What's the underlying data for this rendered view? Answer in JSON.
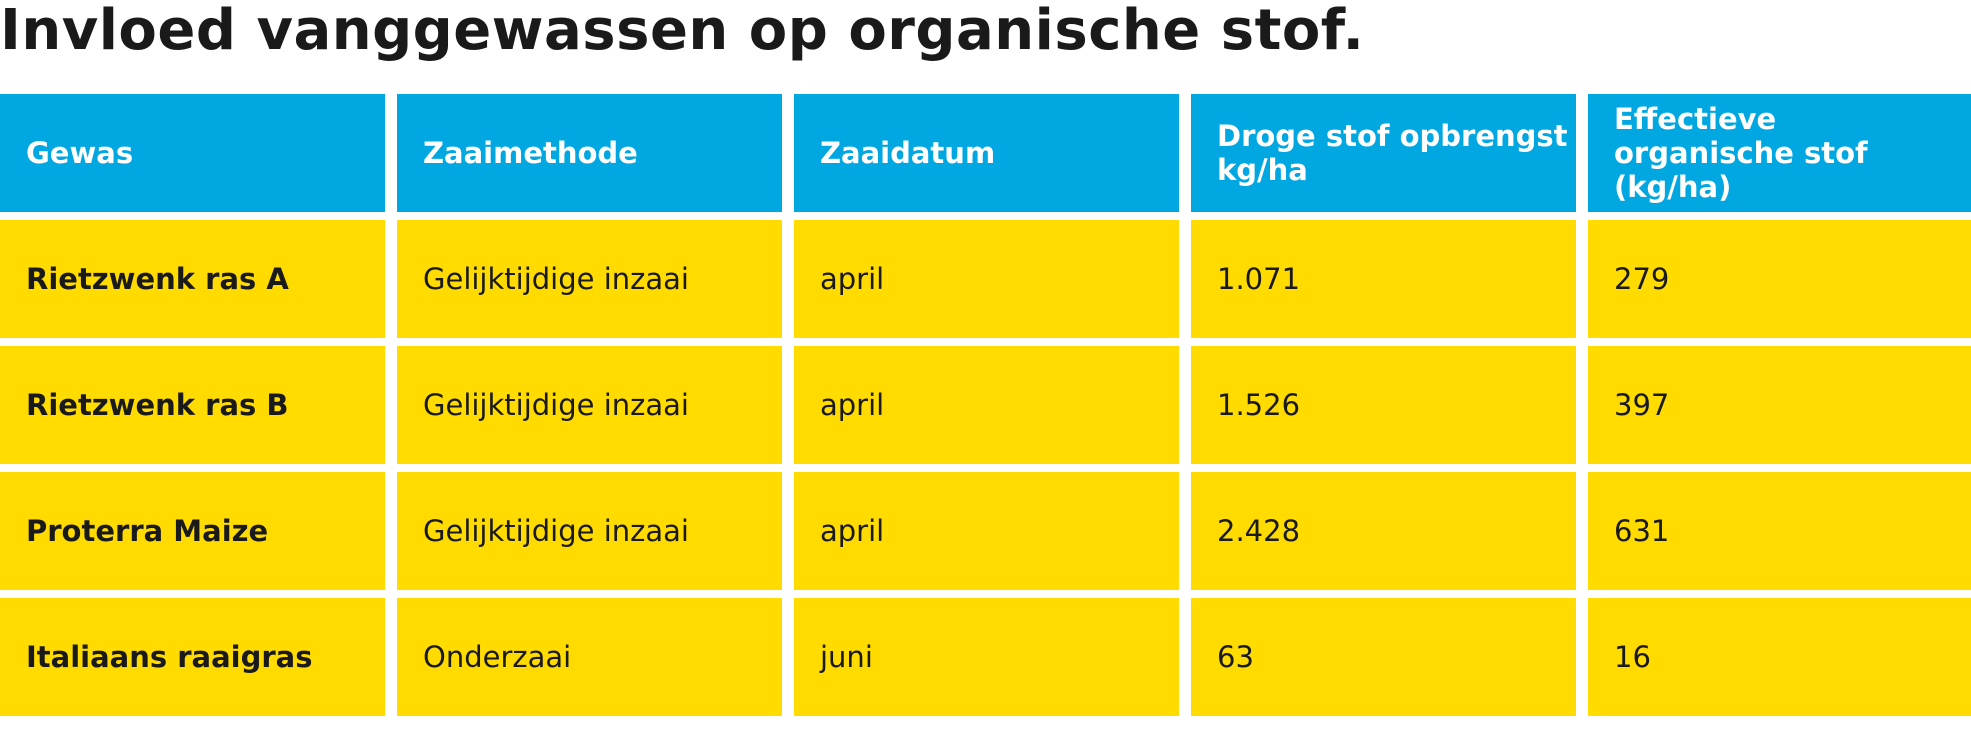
{
  "title": "Invloed vanggewassen op organische stof.",
  "table": {
    "headers": [
      "Gewas",
      "Zaaimethode",
      "Zaaidatum",
      "Droge stof opbrengst\nkg/ha",
      "Effectieve\norganische stof (kg/ha)"
    ],
    "rows": [
      [
        "Rietzwenk ras A",
        "Gelijktijdige inzaai",
        "april",
        "1.071",
        "279"
      ],
      [
        "Rietzwenk ras B",
        "Gelijktijdige inzaai",
        "april",
        "1.526",
        "397"
      ],
      [
        "Proterra Maize",
        "Gelijktijdige inzaai",
        "april",
        "2.428",
        "631"
      ],
      [
        "Italiaans raaigras",
        "Onderzaai",
        "juni",
        "63",
        "16"
      ]
    ]
  },
  "colors": {
    "header_bg": "#00a7e1",
    "row_bg": "#ffdb00",
    "text": "#1a1a1a",
    "header_text": "#ffffff"
  }
}
